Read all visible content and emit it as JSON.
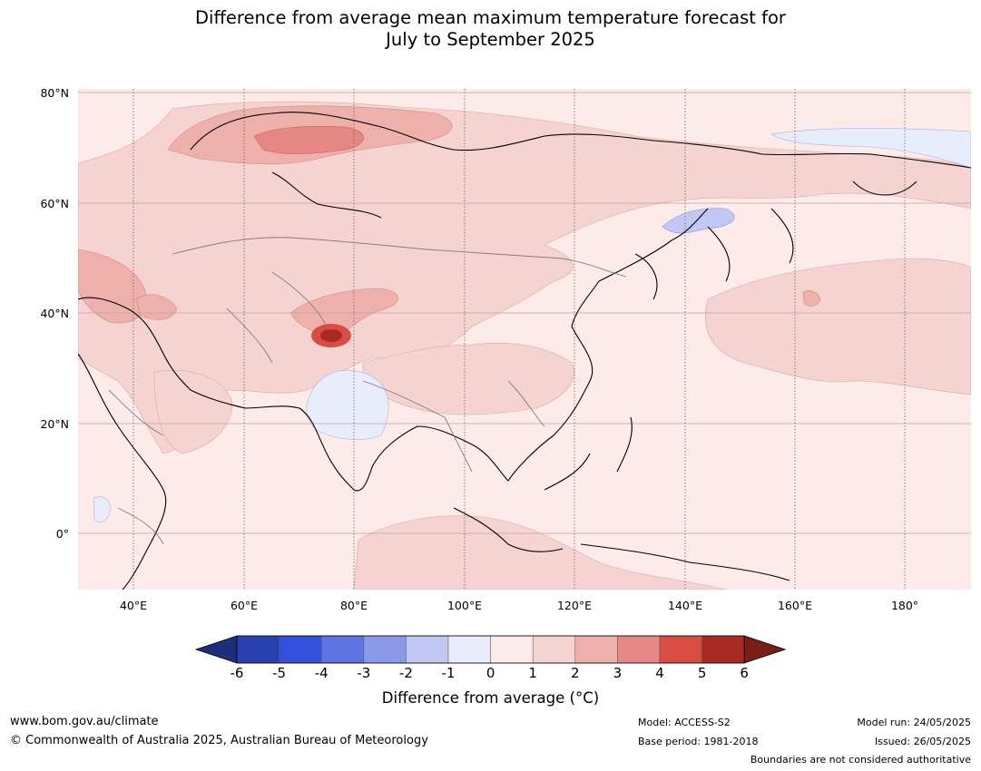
{
  "title_line1": "Difference from average mean maximum temperature forecast for",
  "title_line2": "July to September 2025",
  "lat_labels": [
    "80°N",
    "60°N",
    "40°N",
    "20°N",
    "0°"
  ],
  "lon_labels": [
    "40°E",
    "60°E",
    "80°E",
    "100°E",
    "120°E",
    "140°E",
    "160°E",
    "180°"
  ],
  "legend": {
    "label": "Difference from average (°C)",
    "ticks": [
      "-6",
      "-5",
      "-4",
      "-3",
      "-2",
      "-1",
      "0",
      "1",
      "2",
      "3",
      "4",
      "5",
      "6"
    ],
    "colors": [
      "#1f2e7a",
      "#2a3fb0",
      "#3350dc",
      "#5f74e2",
      "#8a99ea",
      "#c0c8f3",
      "#e9ecfb",
      "#fcebe9",
      "#f5d3d0",
      "#edb0ab",
      "#e58783",
      "#d84c42",
      "#a92a22",
      "#7a1e18"
    ]
  },
  "footer": {
    "website": "www.bom.gov.au/climate",
    "copyright": "© Commonwealth of Australia 2025, Australian Bureau of Meteorology",
    "model": "Model: ACCESS-S2",
    "base_period": "Base period: 1981-2018",
    "model_run": "Model run: 24/05/2025",
    "issued": "Issued: 26/05/2025",
    "disclaimer": "Boundaries are not considered authoritative"
  }
}
